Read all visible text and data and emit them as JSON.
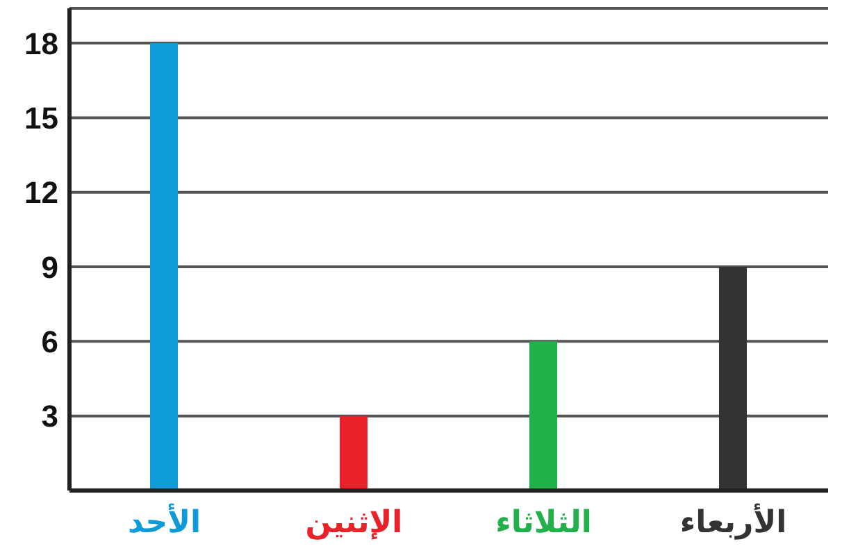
{
  "chart_data": {
    "type": "bar",
    "categories": [
      "الأحد",
      "الإثنين",
      "الثلاثاء",
      "الأربعاء"
    ],
    "values": [
      18,
      3,
      6,
      9
    ],
    "colors": [
      "#0f9ad8",
      "#e8212a",
      "#22b04b",
      "#333333"
    ],
    "ylim": [
      0,
      19.4
    ],
    "yticks": [
      {
        "value": 0,
        "label": null
      },
      3,
      6,
      9,
      12,
      15,
      18
    ],
    "grid": "y"
  }
}
